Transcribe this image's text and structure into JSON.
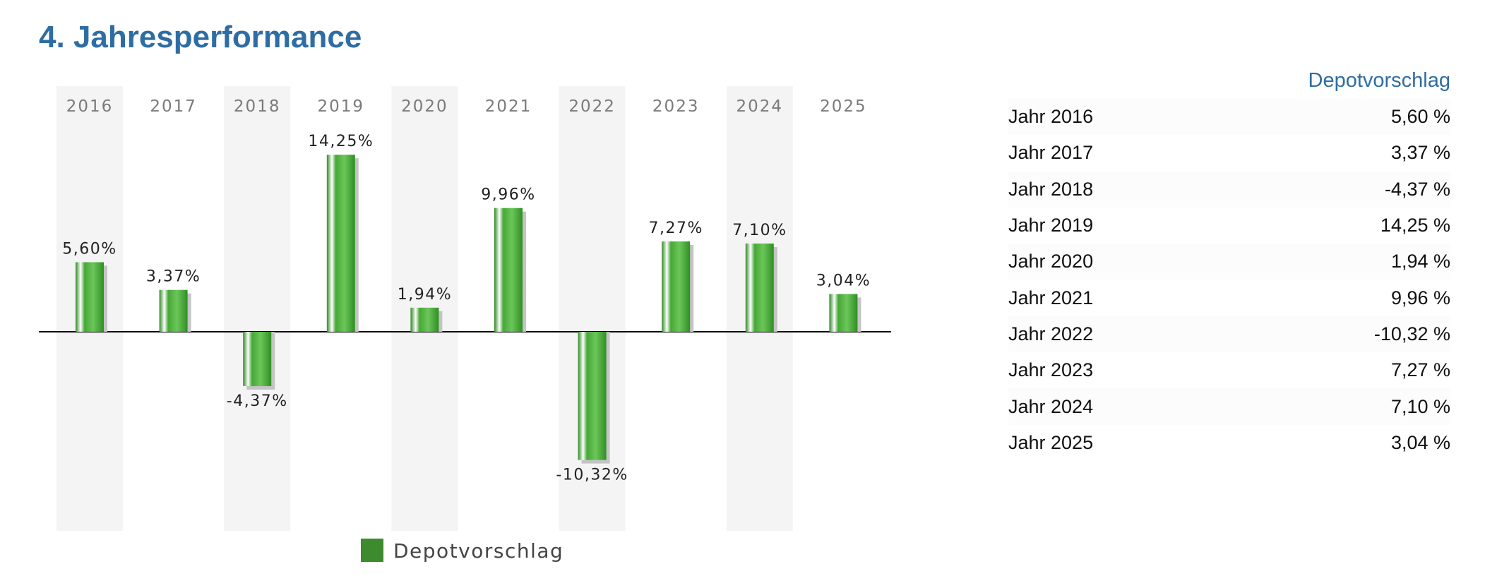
{
  "page": {
    "title": "4. Jahresperformance"
  },
  "chart_data": {
    "type": "bar",
    "categories": [
      "2016",
      "2017",
      "2018",
      "2019",
      "2020",
      "2021",
      "2022",
      "2023",
      "2024",
      "2025"
    ],
    "series": [
      {
        "name": "Depotvorschlag",
        "values": [
          5.6,
          3.37,
          -4.37,
          14.25,
          1.94,
          9.96,
          -10.32,
          7.27,
          7.1,
          3.04
        ]
      }
    ],
    "data_labels": [
      "5,60%",
      "3,37%",
      "-4,37%",
      "14,25%",
      "1,94%",
      "9,96%",
      "-10,32%",
      "7,27%",
      "7,10%",
      "3,04%"
    ],
    "legend": {
      "position": "bottom",
      "entries": [
        "Depotvorschlag"
      ]
    },
    "grid": false,
    "title": "",
    "xlabel": "",
    "ylabel": ""
  },
  "table": {
    "header": "Depotvorschlag",
    "rows": [
      {
        "year": "Jahr 2016",
        "value": "5,60 %"
      },
      {
        "year": "Jahr 2017",
        "value": "3,37 %"
      },
      {
        "year": "Jahr 2018",
        "value": "-4,37 %"
      },
      {
        "year": "Jahr 2019",
        "value": "14,25 %"
      },
      {
        "year": "Jahr 2020",
        "value": "1,94 %"
      },
      {
        "year": "Jahr 2021",
        "value": "9,96 %"
      },
      {
        "year": "Jahr 2022",
        "value": "-10,32 %"
      },
      {
        "year": "Jahr 2023",
        "value": "7,27 %"
      },
      {
        "year": "Jahr 2024",
        "value": "7,10 %"
      },
      {
        "year": "Jahr 2025",
        "value": "3,04 %"
      }
    ]
  },
  "colors": {
    "title": "#2e6da4",
    "bar": "#3aa02c",
    "bar_highlight": "#7fd16a",
    "bar_shadow": "#c4c4c4",
    "band": "#f5f4f5",
    "legend_swatch": "#3d8a2f",
    "axis": "#000000"
  }
}
